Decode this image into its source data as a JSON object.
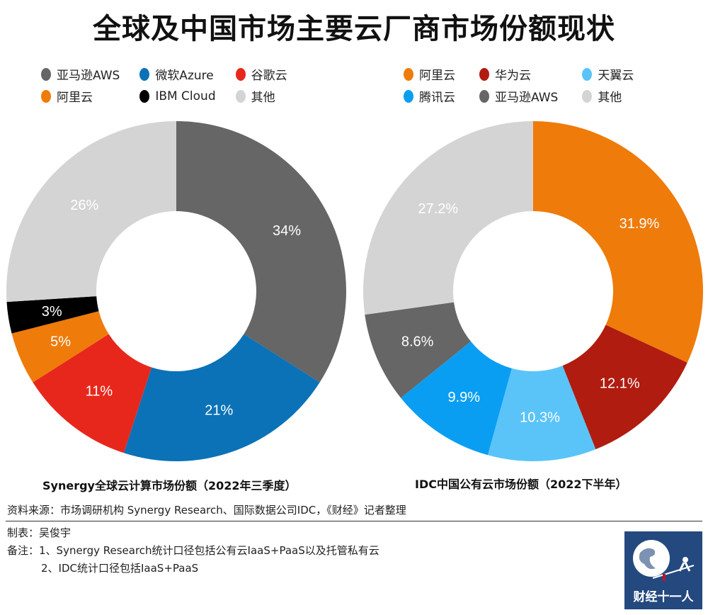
{
  "title": "全球及中国市场主要云厂商市场份额现状",
  "chart_data": [
    {
      "type": "pie",
      "donut": true,
      "title": "Synergy全球云计算市场份额（2022年三季度）",
      "categories": [
        "亚马逊AWS",
        "微软Azure",
        "谷歌云",
        "阿里云",
        "IBM Cloud",
        "其他"
      ],
      "legend_order": [
        "亚马逊AWS",
        "微软Azure",
        "谷歌云",
        "阿里云",
        "IBM Cloud",
        "其他"
      ],
      "values": [
        34,
        21,
        11,
        5,
        3,
        26
      ],
      "labels": [
        "34%",
        "21%",
        "11%",
        "5%",
        "3%",
        "26%"
      ],
      "colors": [
        "#666666",
        "#0b72b7",
        "#e8271c",
        "#ef7b0b",
        "#000000",
        "#d4d4d4"
      ],
      "legend": "top"
    },
    {
      "type": "pie",
      "donut": true,
      "title": "IDC中国公有云市场份额（2022下半年）",
      "categories": [
        "阿里云",
        "华为云",
        "天翼云",
        "腾讯云",
        "亚马逊AWS",
        "其他"
      ],
      "legend_order": [
        "阿里云",
        "华为云",
        "天翼云",
        "腾讯云",
        "亚马逊AWS",
        "其他"
      ],
      "values": [
        31.9,
        12.1,
        10.3,
        9.9,
        8.6,
        27.2
      ],
      "labels": [
        "31.9%",
        "12.1%",
        "10.3%",
        "9.9%",
        "8.6%",
        "27.2%"
      ],
      "colors": [
        "#ef7b0b",
        "#b01c0f",
        "#5ac4f8",
        "#0a9ef2",
        "#666666",
        "#d4d4d4"
      ],
      "legend": "top"
    }
  ],
  "footer": {
    "source": "资料来源：市场调研机构 Synergy Research、国际数据公司IDC，《财经》记者整理",
    "author": "制表：吴俊宇",
    "note1": "备注：1、Synergy Research统计口径包括公有云IaaS+PaaS以及托管私有云",
    "note2": "2、IDC统计口径包括IaaS+PaaS"
  },
  "logo": {
    "text": "财经十一人"
  }
}
